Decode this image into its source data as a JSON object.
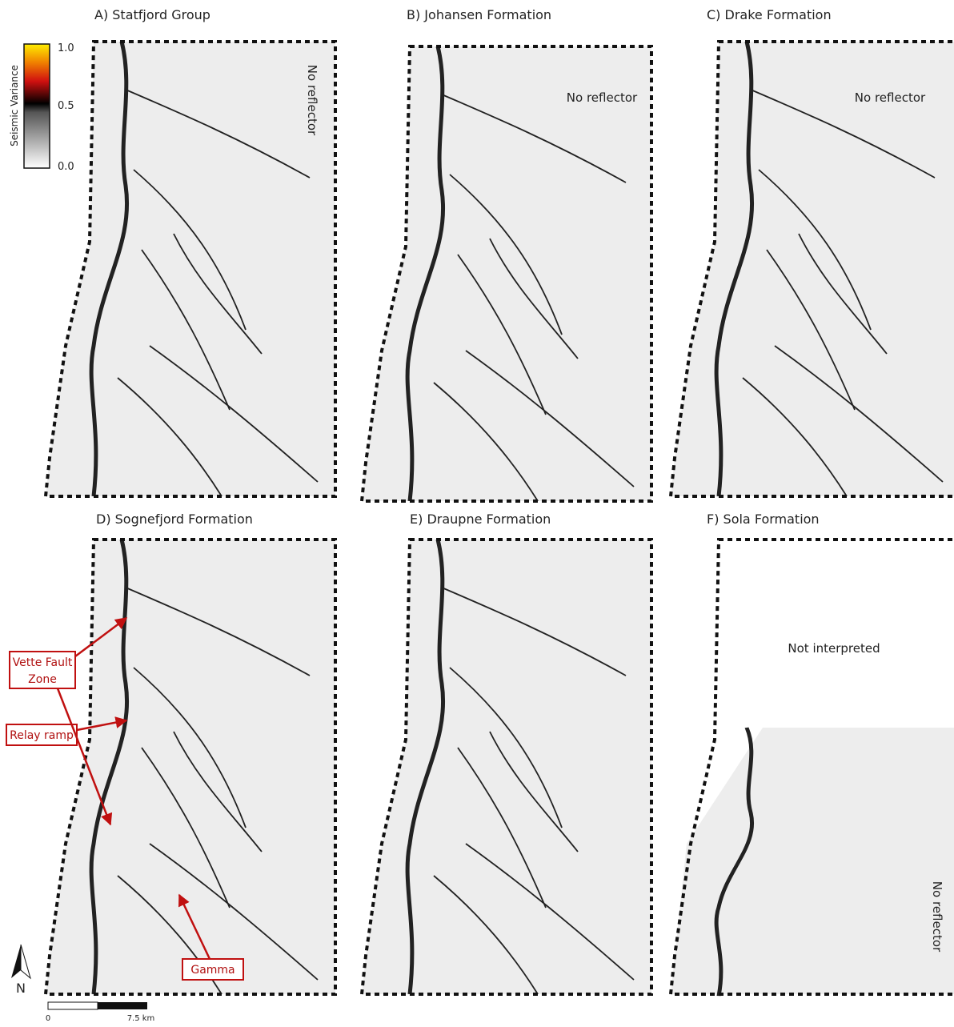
{
  "colorbar": {
    "label": "Seismic Variance",
    "ticks": [
      "1.0",
      "0.5",
      "0.0"
    ]
  },
  "panels": [
    {
      "title": "A) Statfjord Group",
      "note": "No reflector"
    },
    {
      "title": "B) Johansen Formation",
      "note": "No reflector"
    },
    {
      "title": "C) Drake Formation",
      "note": "No reflector"
    },
    {
      "title": "D) Sognefjord Formation",
      "annotations": [
        {
          "lines": [
            "Vette Fault",
            "Zone"
          ]
        },
        {
          "lines": [
            "Relay ramp"
          ]
        },
        {
          "lines": [
            "Gamma"
          ]
        }
      ]
    },
    {
      "title": "E) Draupne Formation"
    },
    {
      "title": "F) Sola Formation",
      "notes": [
        "Not interpreted",
        "No reflector"
      ]
    }
  ],
  "north": "N",
  "scale_bar": {
    "labels": [
      "0",
      "7.5 km"
    ]
  }
}
